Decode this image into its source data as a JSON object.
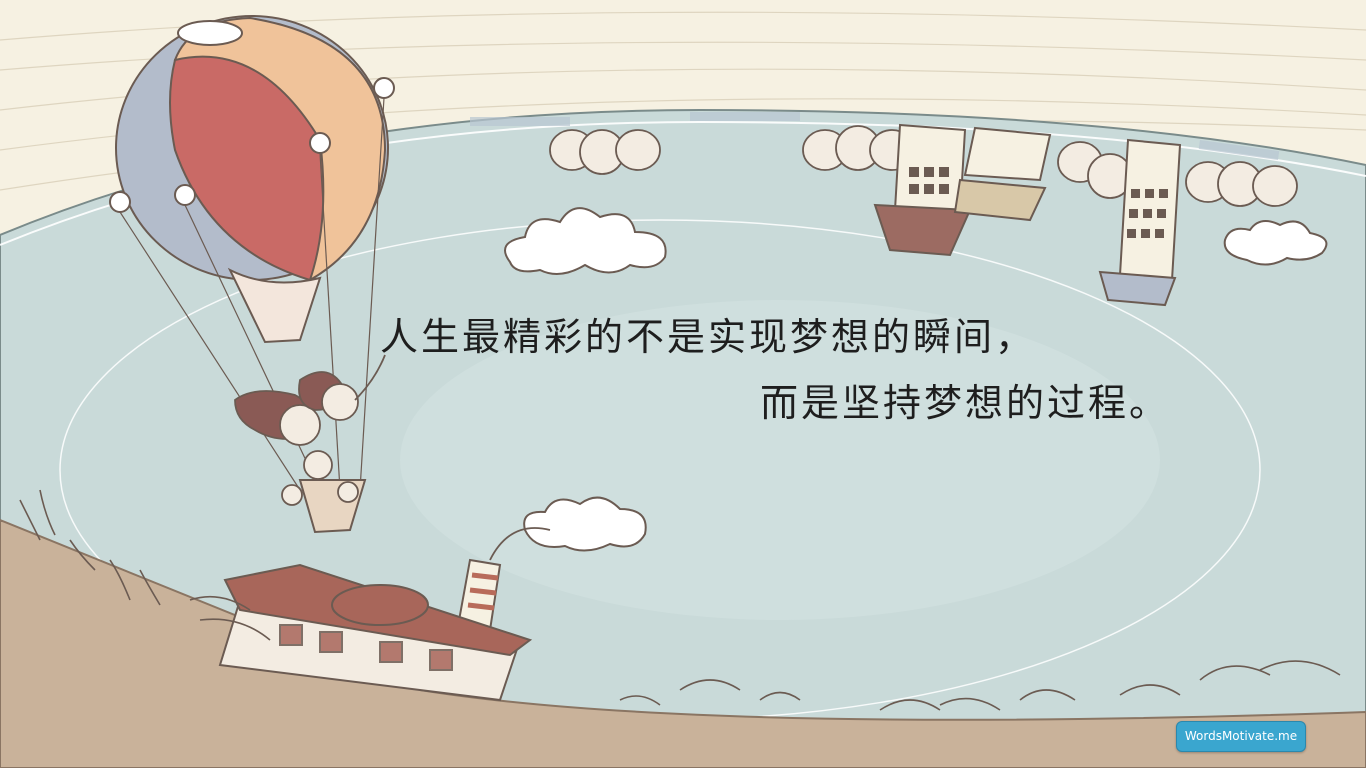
{
  "quote": {
    "line1": "人生最精彩的不是实现梦想的瞬间，",
    "line2": "而是坚持梦想的过程。"
  },
  "badge": {
    "label": "WordsMotivate.me"
  },
  "colors": {
    "sky": "#c9dad9",
    "cream": "#f6f1e2",
    "ground": "#c9b29a",
    "balloon_red": "#c96a66",
    "balloon_peach": "#f0c39a",
    "balloon_blue": "#b3bccb",
    "line": "#6b5b52",
    "badge": "#3aa6cf"
  },
  "icons": [
    "hot-air-balloon",
    "cloud",
    "tree",
    "building",
    "chimney",
    "cafe-house",
    "grass"
  ]
}
